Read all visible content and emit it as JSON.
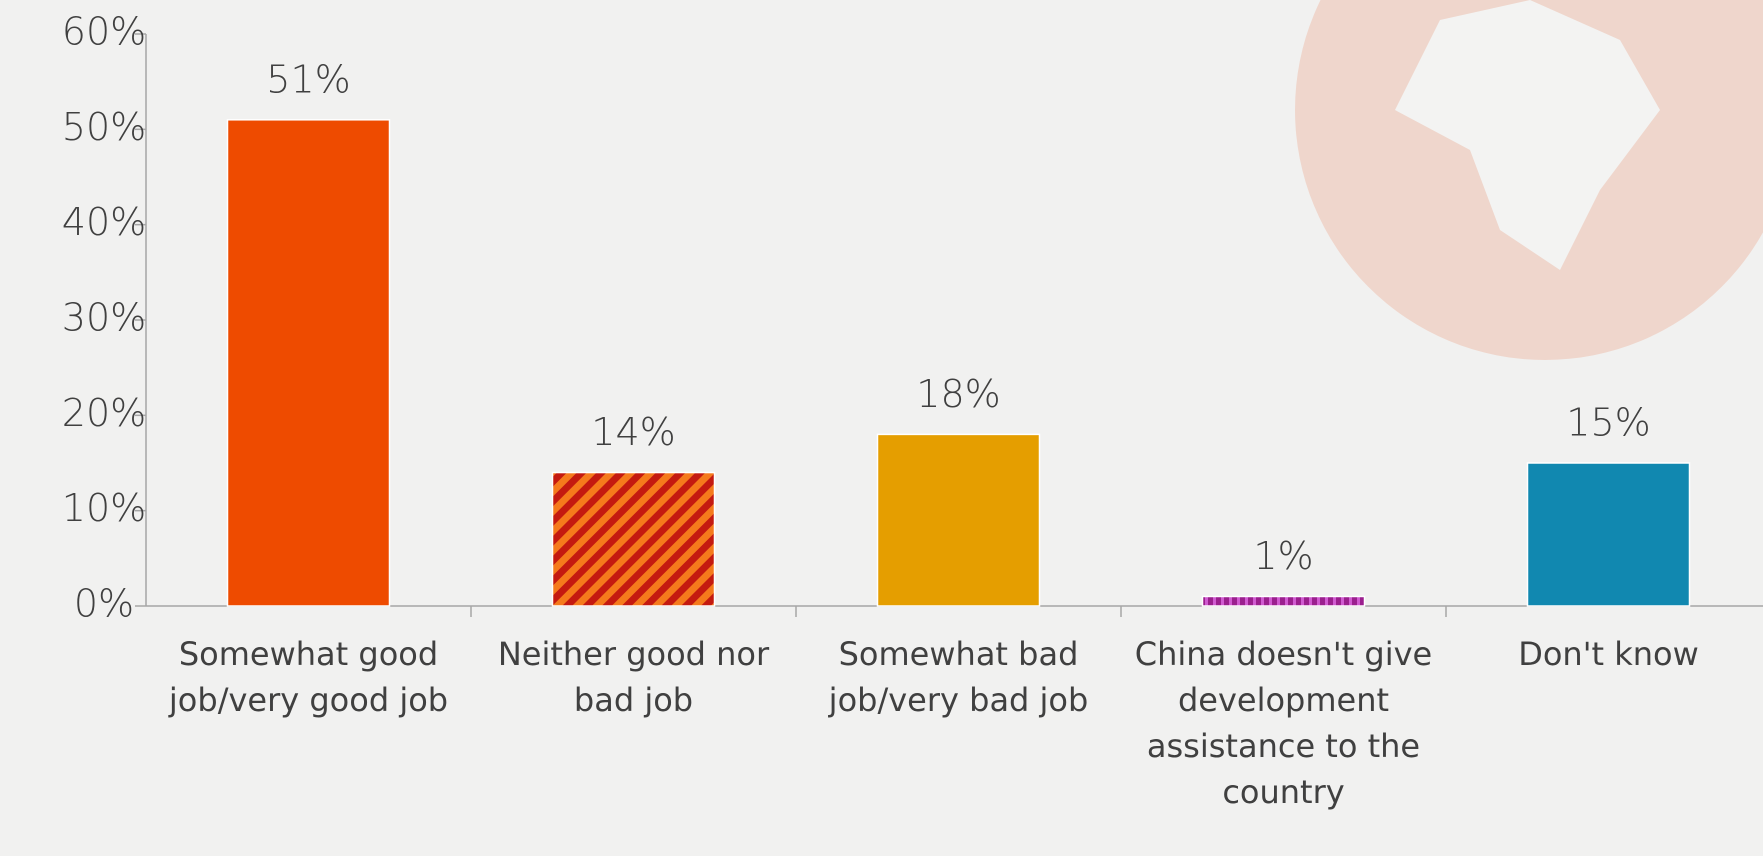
{
  "chart_data": {
    "type": "bar",
    "categories": [
      "Somewhat good job/very good job",
      "Neither good nor bad job",
      "Somewhat bad job/very bad job",
      "China doesn't give development assistance to the country",
      "Don't know"
    ],
    "values": [
      51,
      14,
      18,
      1,
      15
    ],
    "value_labels": [
      "51%",
      "14%",
      "18%",
      "1%",
      "15%"
    ],
    "colors": [
      "#ee4b00",
      "#d92b10",
      "#e59e00",
      "#9b1f8e",
      "#1188b0"
    ],
    "fills": [
      "solid",
      "hatch",
      "solid",
      "dots",
      "solid"
    ],
    "ylim": [
      0,
      60
    ],
    "yticks": [
      {
        "value": 0,
        "label": "0%"
      },
      {
        "value": 10,
        "label": "10%"
      },
      {
        "value": 20,
        "label": "20%"
      },
      {
        "value": 30,
        "label": "30%"
      },
      {
        "value": 40,
        "label": "40%"
      },
      {
        "value": 50,
        "label": "50%"
      },
      {
        "value": 60,
        "label": "60%"
      }
    ],
    "grid": false
  }
}
